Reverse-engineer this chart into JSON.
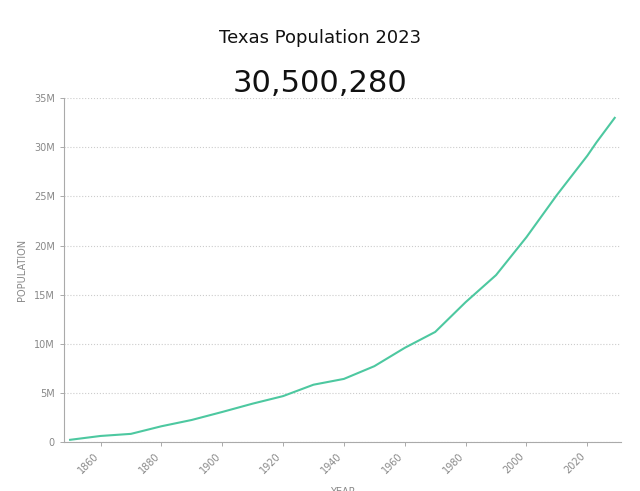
{
  "title_line1": "Texas Population 2023",
  "title_line2": "30,500,280",
  "xlabel": "YEAR",
  "ylabel": "POPULATION",
  "line_color": "#4dc8a0",
  "line_width": 1.5,
  "background_color": "#ffffff",
  "grid_color": "#cccccc",
  "grid_style": "dotted",
  "ylim": [
    0,
    35000000
  ],
  "ytick_values": [
    0,
    5000000,
    10000000,
    15000000,
    20000000,
    25000000,
    30000000,
    35000000
  ],
  "ytick_labels": [
    "0",
    "5M",
    "10M",
    "15M",
    "20M",
    "25M",
    "30M",
    "35M"
  ],
  "xticks": [
    1860,
    1880,
    1900,
    1920,
    1940,
    1960,
    1980,
    2000,
    2020
  ],
  "xlim_left": 1848,
  "xlim_right": 2031,
  "years": [
    1850,
    1860,
    1870,
    1880,
    1890,
    1900,
    1910,
    1920,
    1930,
    1940,
    1950,
    1960,
    1970,
    1980,
    1990,
    2000,
    2010,
    2020,
    2023,
    2029
  ],
  "population": [
    212592,
    604215,
    818579,
    1591749,
    2235527,
    3048710,
    3896542,
    4663228,
    5824715,
    6414824,
    7711194,
    9579677,
    11196730,
    14229191,
    16986510,
    20851820,
    25145561,
    29145505,
    30500280,
    33000000
  ],
  "title_fontsize": 13,
  "subtitle_fontsize": 22,
  "axis_label_fontsize": 7,
  "tick_fontsize": 7,
  "spine_color": "#aaaaaa",
  "tick_color": "#888888",
  "label_color": "#888888"
}
